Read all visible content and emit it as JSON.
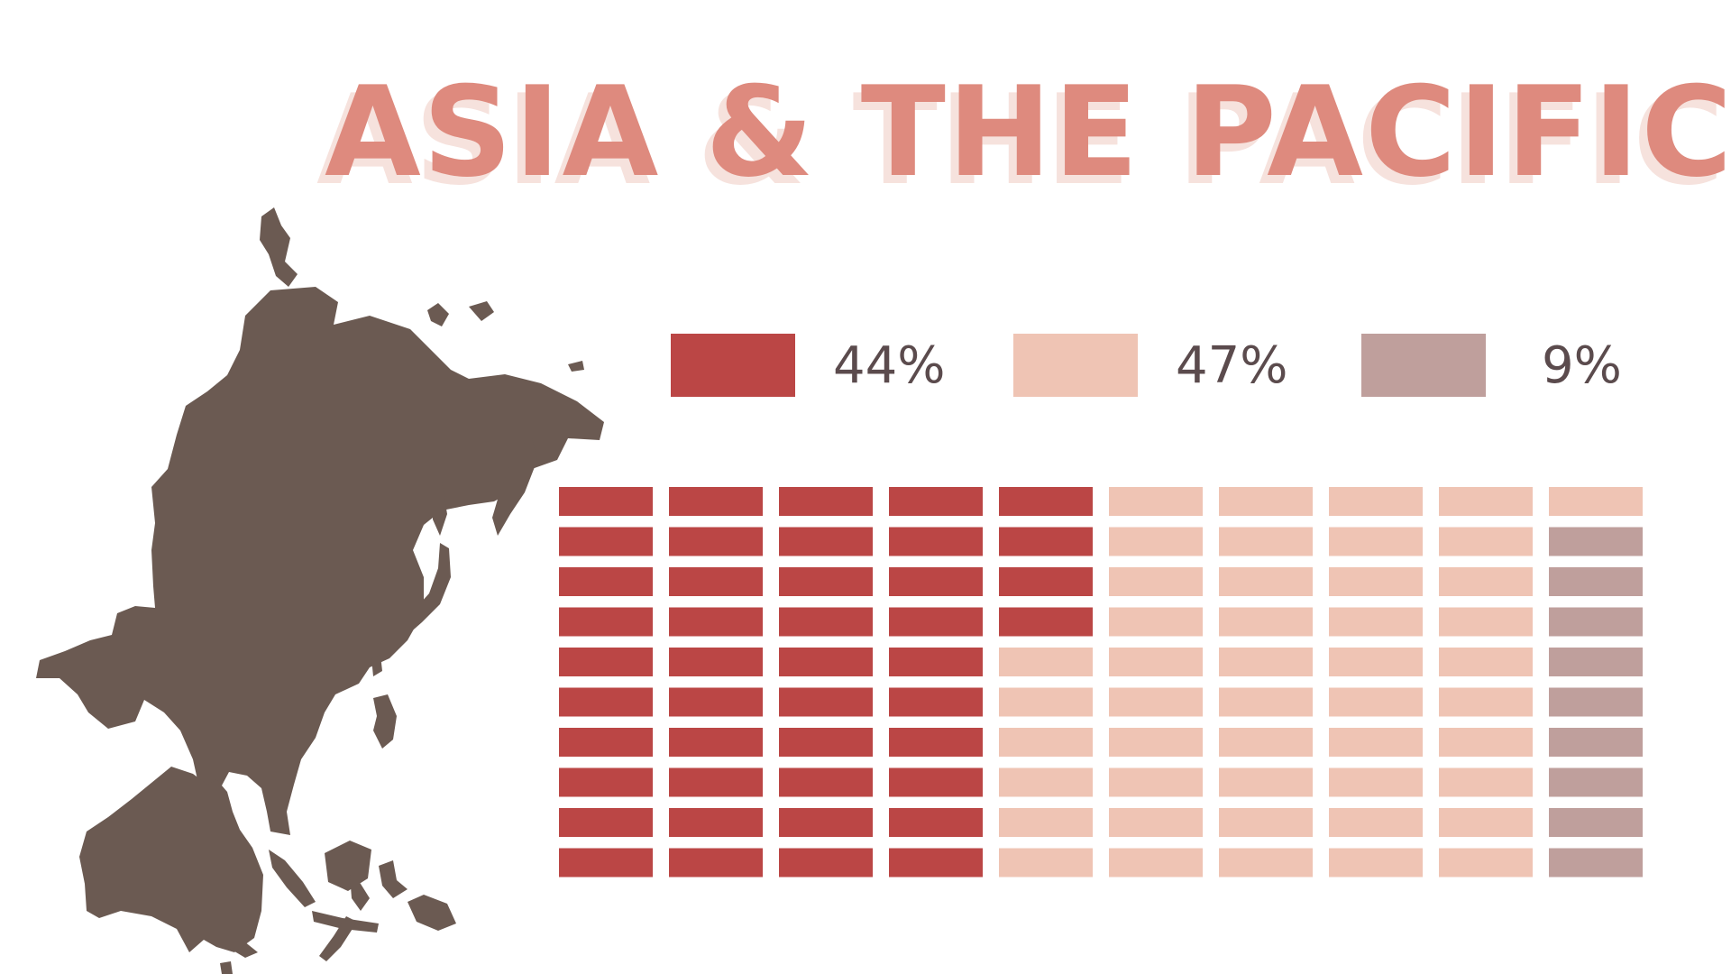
{
  "title": "ASIA & THE PACIFIC",
  "colors": {
    "title": "#de8a7e",
    "title_shadow": "#f6e2dd",
    "map": "#6b5a52",
    "text": "#5b4b4d"
  },
  "map_icon": "asia-pacific-map-icon",
  "chart_data": {
    "type": "waffle",
    "total_cells": 100,
    "grid": {
      "columns": 10,
      "rows": 10,
      "fill_order": "column-major"
    },
    "categories": [
      "44%",
      "47%",
      "9%"
    ],
    "values": [
      44,
      47,
      9
    ],
    "series": [
      {
        "label": "44%",
        "value": 44,
        "color": "#bb4645"
      },
      {
        "label": "47%",
        "value": 47,
        "color": "#efc4b4"
      },
      {
        "label": "9%",
        "value": 9,
        "color": "#bf9f9c"
      }
    ],
    "legend_position": "top"
  }
}
